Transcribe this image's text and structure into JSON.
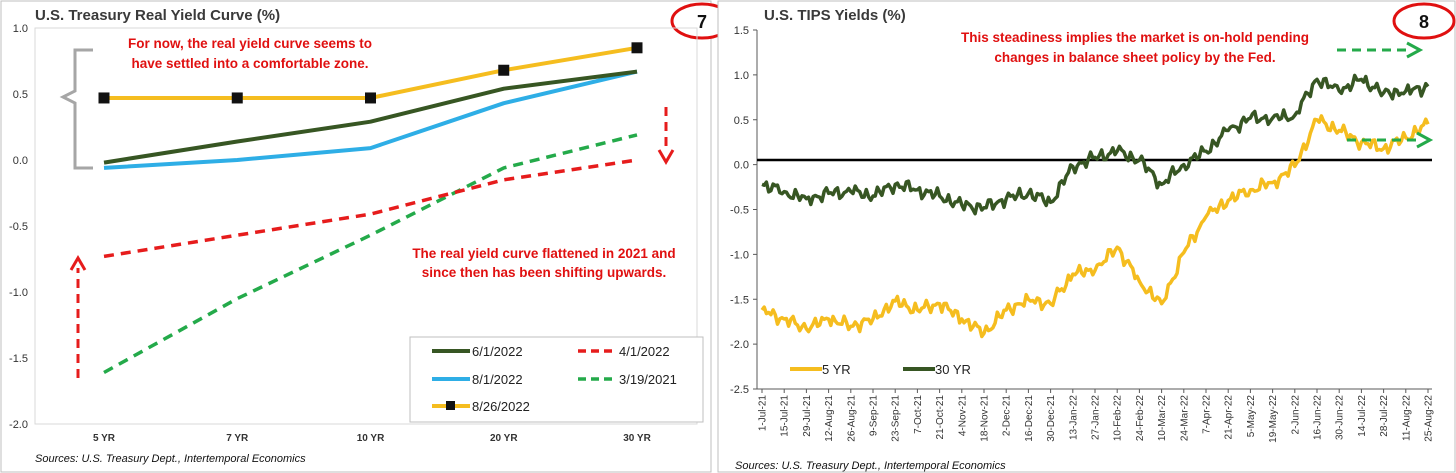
{
  "charts": [
    {
      "title": "U.S. Treasury Real Yield Curve (%)",
      "badge": "7",
      "source": "Sources: U.S. Treasury Dept., Intertemporal Economics",
      "annotations": [
        "For now, the real yield curve seems to",
        "have settled into a comfortable zone.",
        "The real yield curve flattened in 2021 and",
        "since then has been shifting upwards."
      ],
      "y_ticks": [
        "1.0",
        "0.5",
        "0.0",
        "-0.5",
        "-1.0",
        "-1.5",
        "-2.0"
      ],
      "colors": {
        "dark_green": "#375623",
        "blue": "#2eaee6",
        "gold": "#f5bd1f",
        "red": "#e61c1c",
        "green": "#24aa4a",
        "bracket": "#a6a6a6"
      }
    },
    {
      "title": "U.S. TIPS Yields (%)",
      "badge": "8",
      "source": "Sources: U.S. Treasury Dept., Intertemporal Economics",
      "annotations": [
        "This steadiness implies the market is on-hold pending",
        "changes in balance sheet policy by the Fed."
      ],
      "y_ticks": [
        "1.5",
        "1.0",
        "0.5",
        "0.0",
        "-0.5",
        "-1.0",
        "-1.5",
        "-2.0",
        "-2.5"
      ],
      "colors": {
        "five_yr": "#f5bd1f",
        "thirty_yr": "#375623",
        "zero_line": "#000000",
        "arrow": "#24aa4a"
      }
    }
  ],
  "chart_data": [
    {
      "type": "line",
      "title": "U.S. Treasury Real Yield Curve (%)",
      "categories": [
        "5 YR",
        "7 YR",
        "10 YR",
        "20 YR",
        "30 YR"
      ],
      "ylim": [
        -2.0,
        1.0
      ],
      "legend_position": "bottom-right",
      "series": [
        {
          "name": "6/1/2022",
          "values": [
            -0.02,
            0.14,
            0.29,
            0.54,
            0.67
          ],
          "color": "#375623",
          "style": "solid"
        },
        {
          "name": "4/1/2022",
          "values": [
            -0.73,
            -0.57,
            -0.41,
            -0.15,
            0.0
          ],
          "color": "#e61c1c",
          "style": "dashed"
        },
        {
          "name": "8/1/2022",
          "values": [
            -0.06,
            0.0,
            0.09,
            0.43,
            0.67
          ],
          "color": "#2eaee6",
          "style": "solid"
        },
        {
          "name": "3/19/2021",
          "values": [
            -1.61,
            -1.05,
            -0.57,
            -0.06,
            0.19
          ],
          "color": "#24aa4a",
          "style": "dashed"
        },
        {
          "name": "8/26/2022",
          "values": [
            0.47,
            0.47,
            0.47,
            0.68,
            0.85
          ],
          "color": "#f5bd1f",
          "style": "solid",
          "markers": "square"
        }
      ]
    },
    {
      "type": "line",
      "title": "U.S. TIPS Yields (%)",
      "ylim": [
        -2.5,
        1.5
      ],
      "legend_position": "bottom-left",
      "x_tick_labels": [
        "1-Jul-21",
        "15-Jul-21",
        "29-Jul-21",
        "12-Aug-21",
        "26-Aug-21",
        "9-Sep-21",
        "23-Sep-21",
        "7-Oct-21",
        "21-Oct-21",
        "4-Nov-21",
        "18-Nov-21",
        "2-Dec-21",
        "16-Dec-21",
        "30-Dec-21",
        "13-Jan-22",
        "27-Jan-22",
        "10-Feb-22",
        "24-Feb-22",
        "10-Mar-22",
        "24-Mar-22",
        "7-Apr-22",
        "21-Apr-22",
        "5-May-22",
        "19-May-22",
        "2-Jun-22",
        "16-Jun-22",
        "30-Jun-22",
        "14-Jul-22",
        "28-Jul-22",
        "11-Aug-22",
        "25-Aug-22"
      ],
      "series": [
        {
          "name": "5 YR",
          "color": "#f5bd1f",
          "x": [
            "1-Jul-21",
            "15-Jul-21",
            "29-Jul-21",
            "12-Aug-21",
            "26-Aug-21",
            "9-Sep-21",
            "23-Sep-21",
            "7-Oct-21",
            "21-Oct-21",
            "4-Nov-21",
            "18-Nov-21",
            "2-Dec-21",
            "16-Dec-21",
            "30-Dec-21",
            "13-Jan-22",
            "27-Jan-22",
            "10-Feb-22",
            "24-Feb-22",
            "10-Mar-22",
            "24-Mar-22",
            "7-Apr-22",
            "21-Apr-22",
            "5-May-22",
            "19-May-22",
            "2-Jun-22",
            "16-Jun-22",
            "30-Jun-22",
            "14-Jul-22",
            "28-Jul-22",
            "11-Aug-22",
            "25-Aug-22"
          ],
          "values": [
            -1.62,
            -1.72,
            -1.83,
            -1.72,
            -1.8,
            -1.72,
            -1.52,
            -1.62,
            -1.55,
            -1.72,
            -1.88,
            -1.62,
            -1.5,
            -1.55,
            -1.22,
            -1.18,
            -0.92,
            -1.3,
            -1.55,
            -0.98,
            -0.58,
            -0.4,
            -0.28,
            -0.2,
            -0.02,
            0.5,
            0.38,
            0.25,
            0.18,
            0.3,
            0.45
          ]
        },
        {
          "name": "30 YR",
          "color": "#375623",
          "x": [
            "1-Jul-21",
            "15-Jul-21",
            "29-Jul-21",
            "12-Aug-21",
            "26-Aug-21",
            "9-Sep-21",
            "23-Sep-21",
            "7-Oct-21",
            "21-Oct-21",
            "4-Nov-21",
            "18-Nov-21",
            "2-Dec-21",
            "16-Dec-21",
            "30-Dec-21",
            "13-Jan-22",
            "27-Jan-22",
            "10-Feb-22",
            "24-Feb-22",
            "10-Mar-22",
            "24-Mar-22",
            "7-Apr-22",
            "21-Apr-22",
            "5-May-22",
            "19-May-22",
            "2-Jun-22",
            "16-Jun-22",
            "30-Jun-22",
            "14-Jul-22",
            "28-Jul-22",
            "11-Aug-22",
            "25-Aug-22"
          ],
          "values": [
            -0.22,
            -0.3,
            -0.38,
            -0.32,
            -0.3,
            -0.35,
            -0.22,
            -0.28,
            -0.35,
            -0.45,
            -0.48,
            -0.38,
            -0.32,
            -0.42,
            -0.02,
            0.08,
            0.15,
            0.05,
            -0.22,
            0.0,
            0.15,
            0.38,
            0.52,
            0.52,
            0.55,
            0.95,
            0.82,
            0.95,
            0.8,
            0.82,
            0.87
          ]
        }
      ]
    }
  ]
}
